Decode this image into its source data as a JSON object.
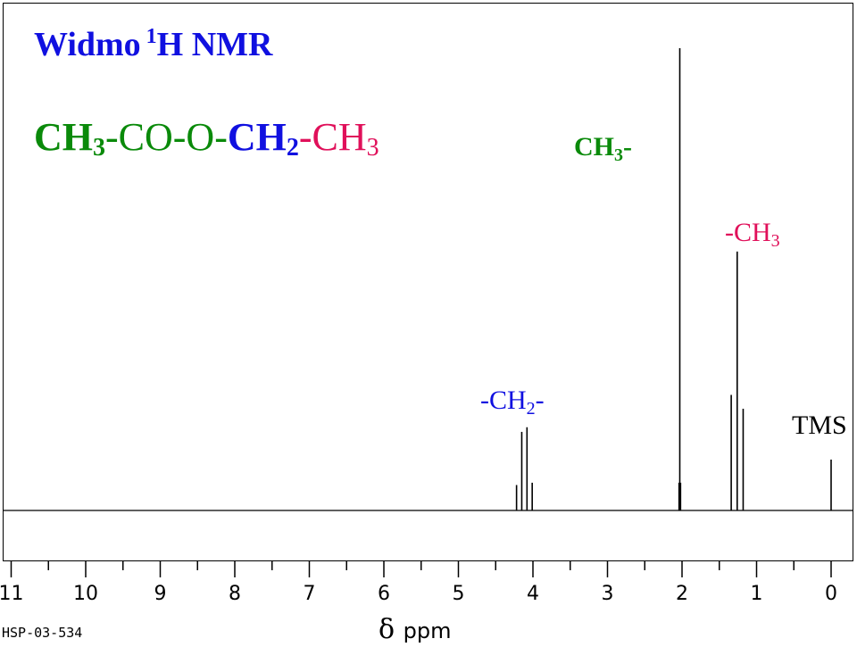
{
  "chart_data": {
    "type": "line",
    "title": "Widmo",
    "title_superscript": "1",
    "title_suffix": "H NMR",
    "formula": [
      {
        "text": "CH",
        "color": "#0a8a0a",
        "bold": true
      },
      {
        "text": "3",
        "color": "#0a8a0a",
        "bold": true,
        "sub": true
      },
      {
        "text": "-CO-O-",
        "color": "#0a8a0a",
        "bold": false
      },
      {
        "text": "CH",
        "color": "#1010e0",
        "bold": true
      },
      {
        "text": "2",
        "color": "#1010e0",
        "bold": true,
        "sub": true
      },
      {
        "text": "-CH",
        "color": "#e0105a",
        "bold": false
      },
      {
        "text": "3",
        "color": "#e0105a",
        "bold": false,
        "sub": true
      }
    ],
    "xlabel": "δ ppm",
    "xlim": [
      11,
      0
    ],
    "x_reversed": true,
    "major_ticks": [
      11,
      10,
      9,
      8,
      7,
      6,
      5,
      4,
      3,
      2,
      1,
      0
    ],
    "minor_step": 0.5,
    "sample_id": "HSP-03-534",
    "y_range": [
      0,
      1
    ],
    "peaks": [
      {
        "x": 4.22,
        "h": 0.055
      },
      {
        "x": 4.15,
        "h": 0.17
      },
      {
        "x": 4.08,
        "h": 0.18
      },
      {
        "x": 4.01,
        "h": 0.06
      },
      {
        "x": 2.04,
        "h": 0.06
      },
      {
        "x": 2.03,
        "h": 1.0
      },
      {
        "x": 2.02,
        "h": 0.06
      },
      {
        "x": 1.34,
        "h": 0.25
      },
      {
        "x": 1.26,
        "h": 0.56
      },
      {
        "x": 1.18,
        "h": 0.22
      },
      {
        "x": 0.0,
        "h": 0.11
      }
    ],
    "peak_labels": [
      {
        "key": "acetyl",
        "text": "CH",
        "sub": "3",
        "suffix": "-",
        "color": "#0a8a0a"
      },
      {
        "key": "ethyl",
        "text": "-CH",
        "sub": "3",
        "suffix": "",
        "color": "#e0105a"
      },
      {
        "key": "methylene",
        "text": "-CH",
        "sub": "2",
        "suffix": "-",
        "color": "#1010e0"
      },
      {
        "key": "tms",
        "text": "TMS",
        "sub": "",
        "suffix": "",
        "color": "#000000"
      }
    ]
  }
}
